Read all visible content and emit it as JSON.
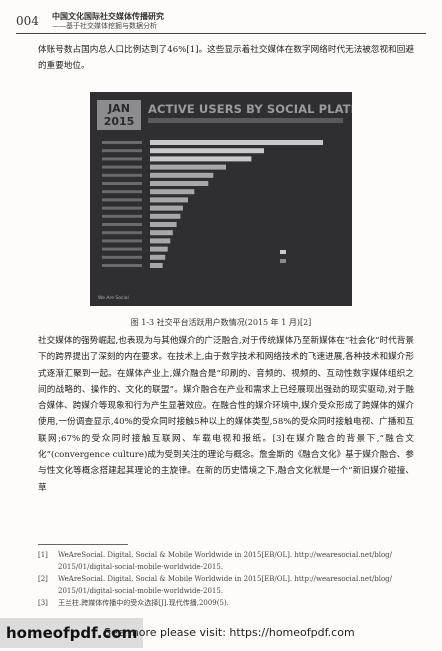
{
  "header": {
    "page_number": "004",
    "series_title": "中国文化国际社交媒体传播研究",
    "series_subtitle": "——基于社交媒体挖掘与数据分析"
  },
  "paragraph_1": "体账号数占国内总人口比例达到了46%[1]。这些显示着社交媒体在数字网络时代无法被忽视和回避的重要地位。",
  "figure": {
    "badge": "JAN 2015",
    "title": "ACTIVE USERS BY SOCIAL PLATFORM",
    "footer": "We Are Social",
    "chart_data": {
      "type": "bar",
      "orientation": "horizontal",
      "categories": [
        "",
        "",
        "",
        "",
        "",
        "",
        "",
        "",
        "",
        "",
        "",
        "",
        "",
        "",
        "",
        ""
      ],
      "values": [
        1366,
        900,
        800,
        600,
        500,
        460,
        350,
        300,
        260,
        240,
        210,
        180,
        160,
        140,
        120,
        100
      ],
      "xlim": [
        0,
        1500
      ]
    }
  },
  "caption": "图 1-3 社交平台活跃用户数情况(2015 年 1 月)[2]",
  "paragraph_2": "社交媒体的强势崛起,也表现为与其他媒介的广泛融合,对于传统媒体乃至新媒体在“社会化”时代背景下的跨界提出了深刻的内在要求。在技术上,由于数字技术和网络技术的飞速进展,各种技术和媒介形式逐渐汇聚到一起。在媒体产业上,媒介融合是“印刷的、音频的、视频的、互动性数字媒体组织之间的战略的、操作的、文化的联盟”。媒介融合在产业和需求上已经展现出强劲的现实驱动,对于融合媒体、跨媒介等现象和行为产生显著效应。在融合性的媒介环境中,媒介受众形成了跨媒体的媒介使用,一份调查显示,40%的受众同时接触5种以上的媒体类型,58%的受众同时接触电视、广播和互联网;67%的受众同时接触互联网、车载电视和报纸。[3]在媒介融合的背景下,“融合文化”(convergence culture)成为受到关注的理论与概念。詹金斯的《融合文化》基于媒介融合、参与性文化等概念搭建起其理论的主旋律。在新的历史情境之下,融合文化就是一个“新旧媒介碰撞、草",
  "footnotes": [
    {
      "num": "[1]",
      "line1": "WeAreSocial. Digital, Social & Mobile Worldwide in 2015[EB/OL]. http://wearesocial.net/blog/",
      "line2": "2015/01/digital-social-mobile-worldwide-2015."
    },
    {
      "num": "[2]",
      "line1": "WeAreSocial. Digital, Social & Mobile Worldwide in 2015[EB/OL]. http://wearesocial.net/blog/",
      "line2": "2015/01/digital-social-mobile-worldwide-2015."
    },
    {
      "num": "[3]",
      "line1": "王兰柱.跨媒体传播中的受众选择[J].现代传播,2009(5).",
      "line2": ""
    }
  ],
  "watermark": {
    "logo": "homeofpdf.com",
    "text": "See more please visit: https://homeofpdf.com"
  }
}
